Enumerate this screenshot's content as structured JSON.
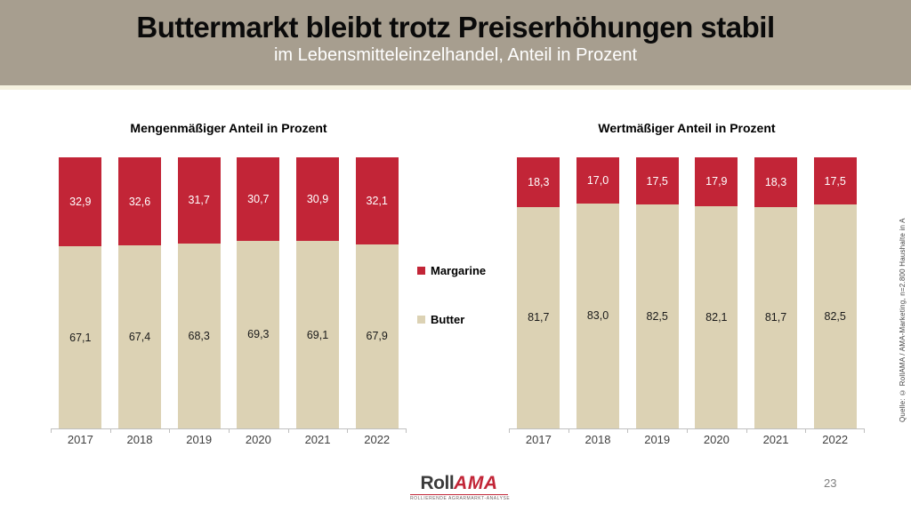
{
  "header": {
    "title": "Buttermarkt bleibt trotz Preiserhöhungen stabil",
    "subtitle": "im Lebensmitteleinzelhandel, Anteil in Prozent"
  },
  "colors": {
    "header_bg": "#A79E8F",
    "header_strip": "#F6F2E0",
    "margarine_red": "#C22537",
    "butter_beige": "#DCD2B4",
    "axis_gray": "#BFBFBF"
  },
  "legend": [
    {
      "label": "Margarine",
      "color": "#C22537"
    },
    {
      "label": "Butter",
      "color": "#DCD2B4"
    }
  ],
  "chart_data": [
    {
      "type": "bar",
      "stacked": true,
      "title": "Mengenmäßiger Anteil in Prozent",
      "categories": [
        "2017",
        "2018",
        "2019",
        "2020",
        "2021",
        "2022"
      ],
      "series": [
        {
          "name": "Margarine",
          "color": "#C22537",
          "label_color": "#FFFFFF",
          "values": [
            32.9,
            32.6,
            31.7,
            30.7,
            30.9,
            32.1
          ]
        },
        {
          "name": "Butter",
          "color": "#DCD2B4",
          "label_color": "#1A1A1A",
          "values": [
            67.1,
            67.4,
            68.3,
            69.3,
            69.1,
            67.9
          ]
        }
      ],
      "xlabel": "",
      "ylabel": "",
      "ylim": [
        0,
        100
      ],
      "grid": false,
      "legend_position": "right-of-chart",
      "value_format": "decimal-comma-1"
    },
    {
      "type": "bar",
      "stacked": true,
      "title": "Wertmäßiger Anteil in Prozent",
      "categories": [
        "2017",
        "2018",
        "2019",
        "2020",
        "2021",
        "2022"
      ],
      "series": [
        {
          "name": "Margarine",
          "color": "#C22537",
          "label_color": "#FFFFFF",
          "values": [
            18.3,
            17.0,
            17.5,
            17.9,
            18.3,
            17.5
          ]
        },
        {
          "name": "Butter",
          "color": "#DCD2B4",
          "label_color": "#1A1A1A",
          "values": [
            81.7,
            83.0,
            82.5,
            82.1,
            81.7,
            82.5
          ]
        }
      ],
      "xlabel": "",
      "ylabel": "",
      "ylim": [
        0,
        100
      ],
      "grid": false,
      "legend_position": "left-of-chart",
      "value_format": "decimal-comma-1"
    }
  ],
  "source_note": "Quelle: © RollAMA / AMA-Marketing, n=2.800 Haushalte in A",
  "footer": {
    "logo_roll": "Roll",
    "logo_ama": "AMA",
    "logo_tagline": "ROLLIERENDE AGRARMARKT-ANALYSE",
    "page_number": "23"
  }
}
